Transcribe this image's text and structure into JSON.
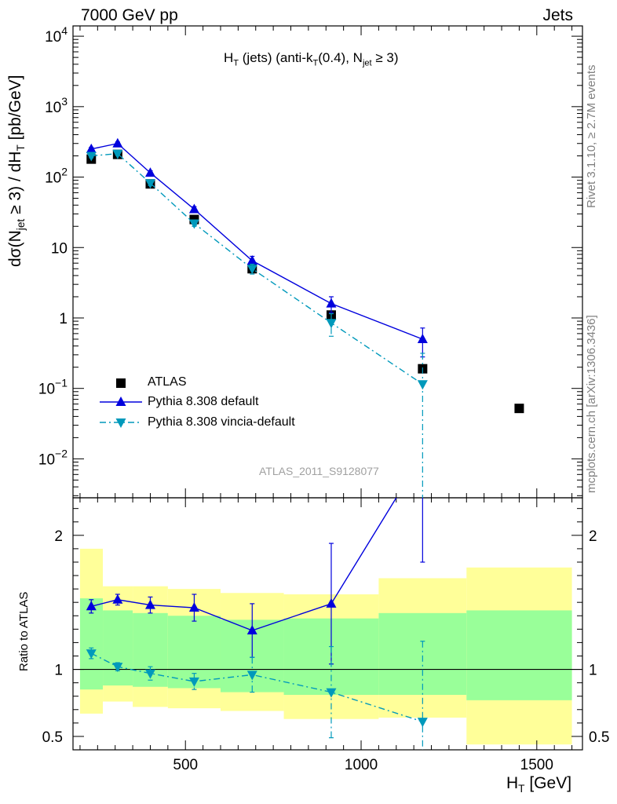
{
  "header": {
    "left": "7000 GeV pp",
    "right": "Jets"
  },
  "side_labels": {
    "rivet": "Rivet 3.1.10, ≥ 2.7M events",
    "mcplots": "mcplots.cern.ch [arXiv:1306.3436]"
  },
  "analysis_id": "ATLAS_2011_S9128077",
  "plot_title": {
    "main": "H",
    "sub1": "T",
    "mid": " (jets) (anti-k",
    "sub2": "T",
    "mid2": "(0.4), N",
    "sub3": "jet",
    "tail": " ≥ 3)"
  },
  "ylabel_main": {
    "a": "dσ(N",
    "sub1": "jet",
    "b": " ≥ 3) / dH",
    "sub2": "T",
    "c": " [pb/GeV]"
  },
  "ylabel_ratio": "Ratio to ATLAS",
  "xlabel": {
    "a": "H",
    "sub": "T",
    "b": " [GeV]"
  },
  "colors": {
    "data": "#000000",
    "default": "#0000dd",
    "vincia": "#0099bb",
    "band_inner": "#99ff99",
    "band_outer": "#ffff99"
  },
  "legend": {
    "data": "ATLAS",
    "default": "Pythia 8.308 default",
    "vincia": "Pythia 8.308 vincia-default"
  },
  "chart_data": {
    "type": "scatter",
    "xlim": [
      180,
      1630
    ],
    "ylim_main": [
      0.0028,
      14000
    ],
    "yscale_main": "log",
    "ylim_ratio": [
      0.4,
      2.28
    ],
    "ratio_reference": 1,
    "x_ticks": [
      "500",
      "1000",
      "1500"
    ],
    "y_ticks_main": [
      "10^-2",
      "10^-1",
      "1",
      "10",
      "10^2",
      "10^3",
      "10^4"
    ],
    "y_ticks_ratio": [
      "0.5",
      "1",
      "2"
    ],
    "bins": [
      {
        "lo": 200,
        "hi": 265,
        "x": 232,
        "data": 180,
        "band_inner": [
          0.85,
          1.53
        ],
        "band_outer": [
          0.67,
          1.9
        ]
      },
      {
        "lo": 265,
        "hi": 350,
        "x": 307,
        "data": 210,
        "band_inner": [
          0.88,
          1.44
        ],
        "band_outer": [
          0.76,
          1.62
        ]
      },
      {
        "lo": 350,
        "hi": 450,
        "x": 400,
        "data": 80,
        "band_inner": [
          0.87,
          1.42
        ],
        "band_outer": [
          0.72,
          1.62
        ]
      },
      {
        "lo": 450,
        "hi": 600,
        "x": 525,
        "data": 25,
        "band_inner": [
          0.86,
          1.4
        ],
        "band_outer": [
          0.71,
          1.6
        ]
      },
      {
        "lo": 600,
        "hi": 780,
        "x": 690,
        "data": 5.0,
        "band_inner": [
          0.83,
          1.37
        ],
        "band_outer": [
          0.69,
          1.57
        ]
      },
      {
        "lo": 780,
        "hi": 1050,
        "x": 915,
        "data": 1.1,
        "band_inner": [
          0.81,
          1.38
        ],
        "band_outer": [
          0.63,
          1.56
        ]
      },
      {
        "lo": 1050,
        "hi": 1300,
        "x": 1175,
        "data": 0.19,
        "band_inner": [
          0.81,
          1.42
        ],
        "band_outer": [
          0.64,
          1.68
        ]
      },
      {
        "lo": 1300,
        "hi": 1600,
        "x": 1450,
        "data": 0.052,
        "band_inner": [
          0.77,
          1.44
        ],
        "band_outer": [
          0.44,
          1.76
        ]
      }
    ],
    "series": [
      {
        "name": "Pythia 8.308 default",
        "x": [
          232,
          307,
          400,
          525,
          690,
          915,
          1175
        ],
        "y": [
          250,
          300,
          115,
          35,
          6.5,
          1.6,
          0.5
        ],
        "y_err_up": [
          15,
          15,
          8,
          3,
          1.0,
          0.4,
          0.22
        ],
        "y_err_down": [
          15,
          15,
          8,
          3,
          1.0,
          0.4,
          0.22
        ],
        "ratio": [
          1.47,
          1.52,
          1.48,
          1.46,
          1.29,
          1.49,
          2.6
        ],
        "ratio_err": [
          0.05,
          0.04,
          0.06,
          0.1,
          0.2,
          0.45,
          0.8
        ]
      },
      {
        "name": "Pythia 8.308 vincia-default",
        "x": [
          232,
          307,
          400,
          525,
          690,
          915,
          1175
        ],
        "y": [
          200,
          215,
          82,
          22,
          5.0,
          0.85,
          0.115
        ],
        "y_err_up": [
          12,
          12,
          6,
          2,
          0.8,
          0.3,
          0.2
        ],
        "y_err_down": [
          12,
          12,
          6,
          2,
          0.8,
          0.3,
          0.115
        ],
        "ratio": [
          1.12,
          1.02,
          0.97,
          0.91,
          0.96,
          0.83,
          0.61
        ],
        "ratio_err": [
          0.04,
          0.03,
          0.05,
          0.06,
          0.13,
          0.34,
          0.6
        ]
      }
    ]
  }
}
